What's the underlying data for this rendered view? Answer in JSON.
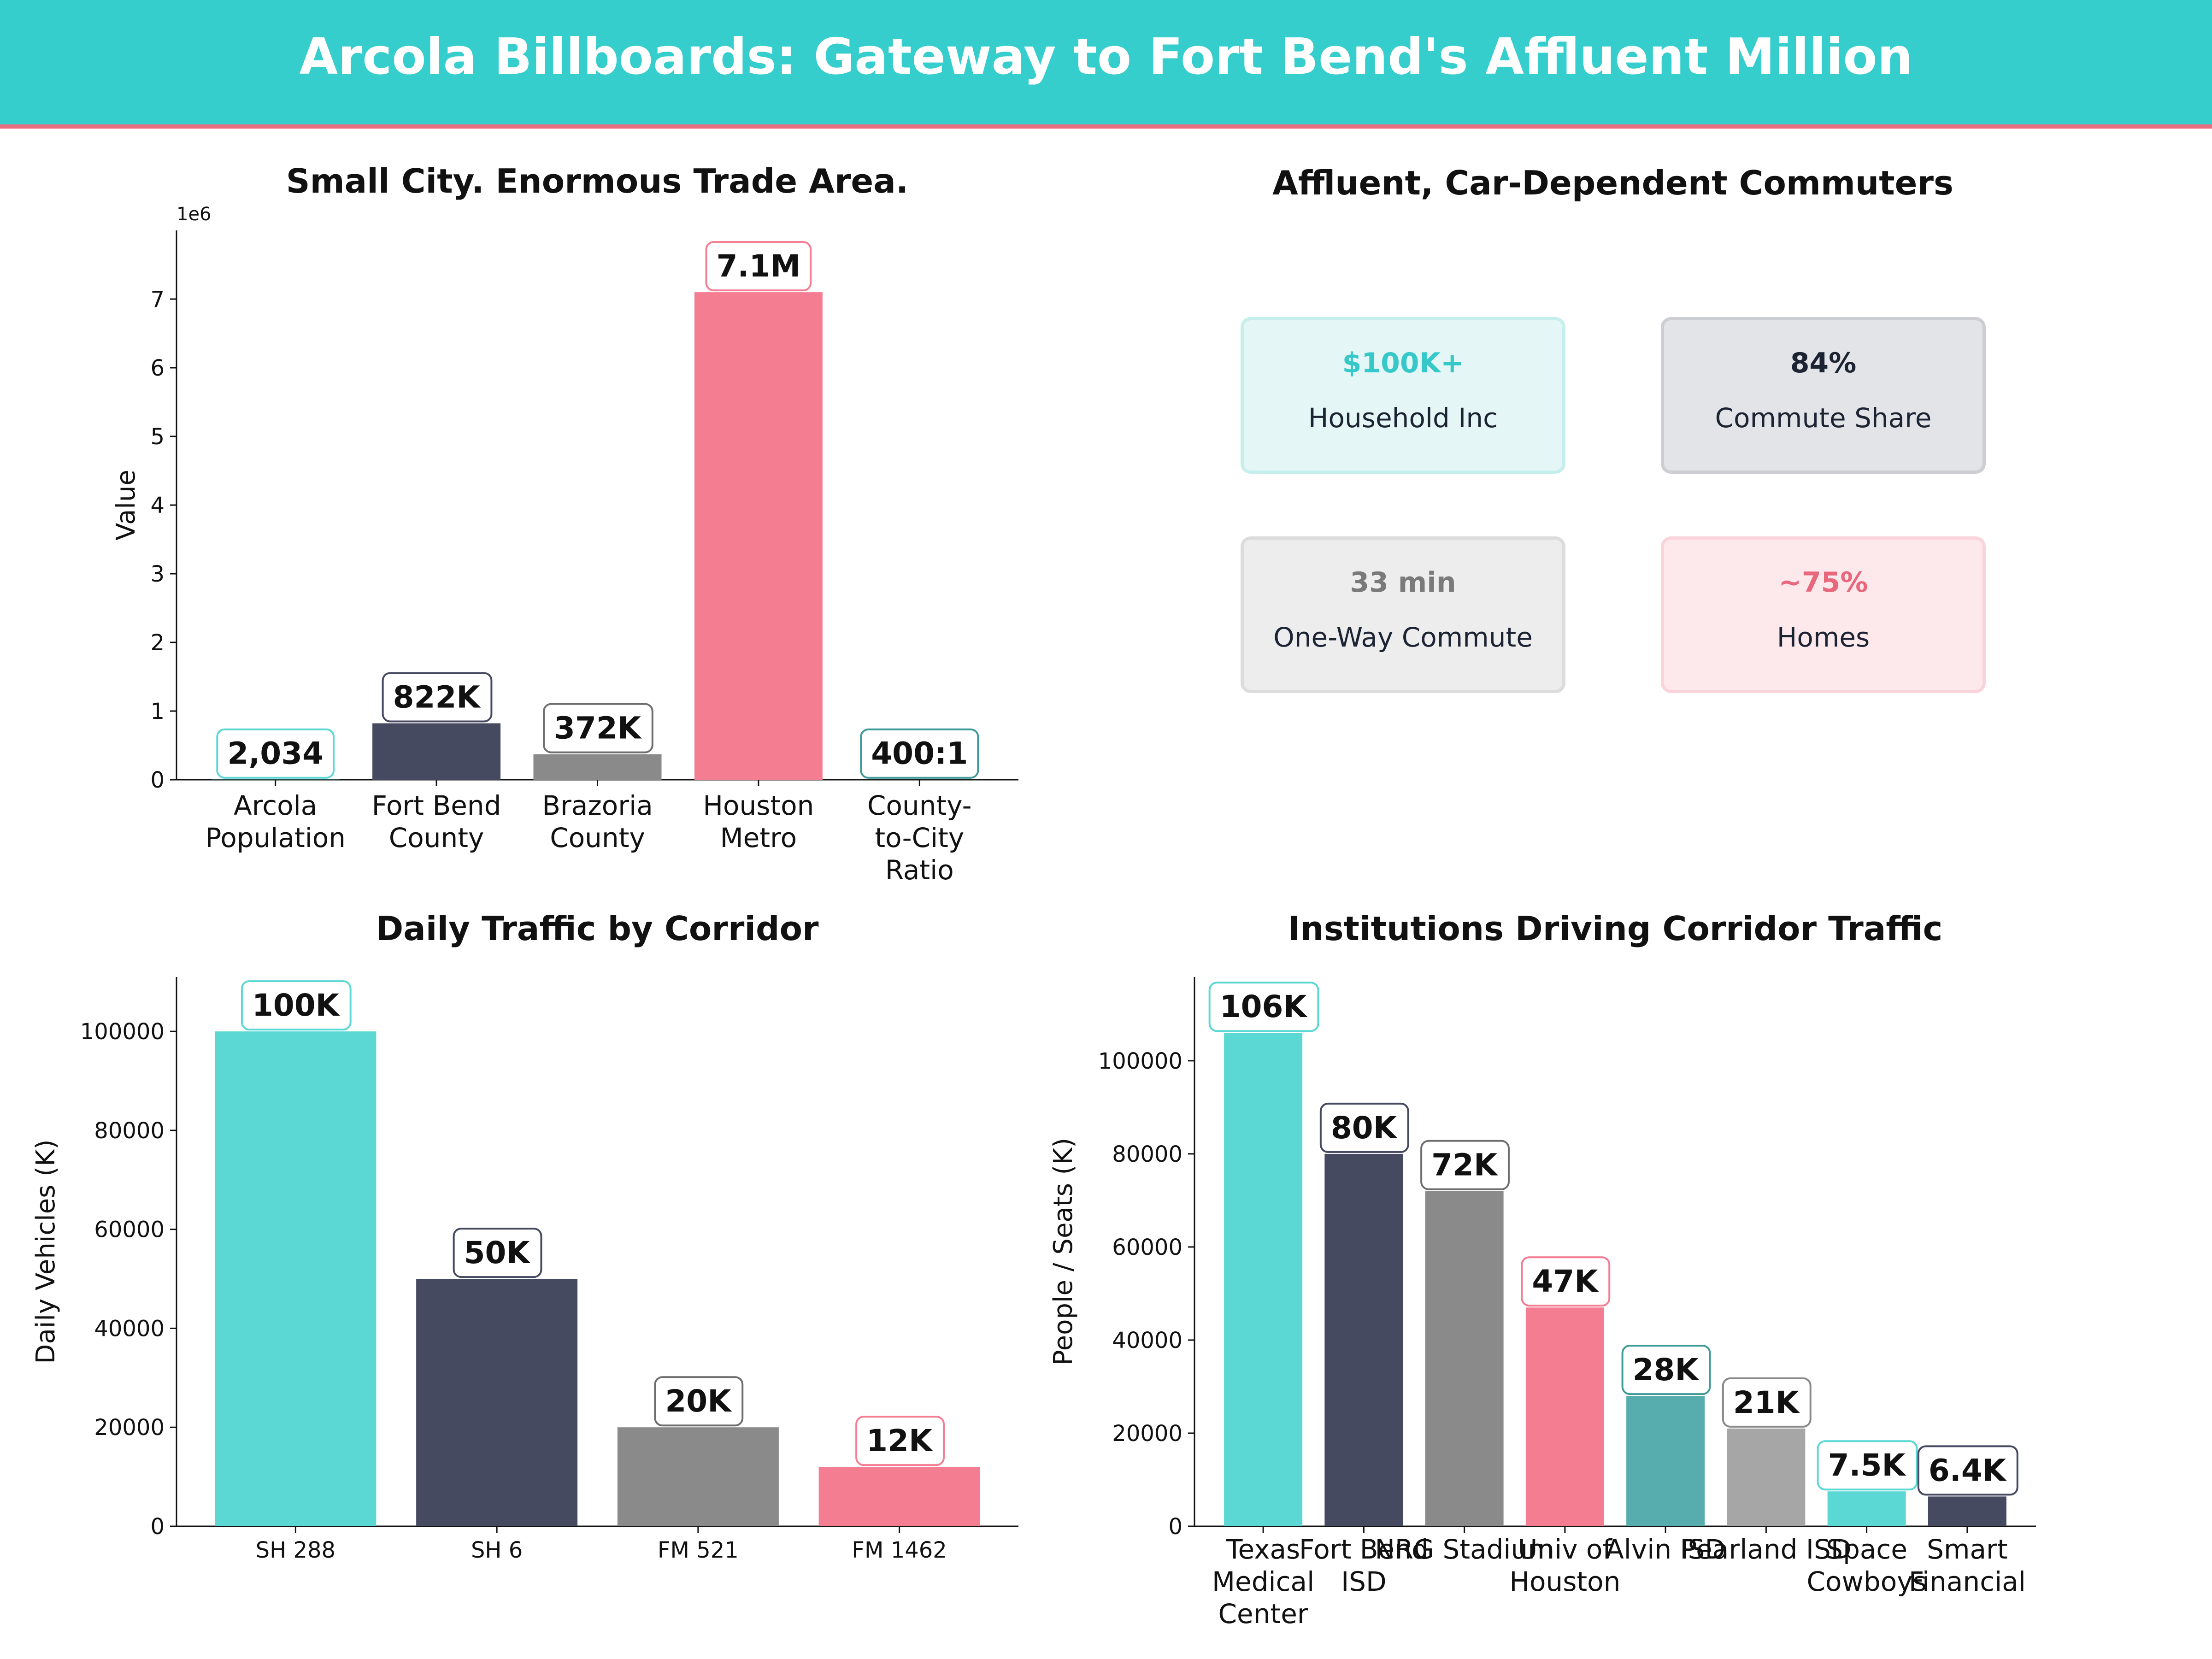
{
  "header": {
    "title": "Arcola Billboards: Gateway to Fort Bend's Affluent Million"
  },
  "colors": {
    "teal": "#5CD8D4",
    "navy": "#464A60",
    "gray": "#8A8A8A",
    "pink": "#F47D92",
    "darkteal": "#57ADAD",
    "lightgray": "#A6A6A6",
    "banner": "#36CDCD",
    "accent": "#E8707E"
  },
  "kpi_panel": {
    "title": "Affluent, Car-Dependent Commuters",
    "cards": [
      {
        "value": "$100K+",
        "label": "Household Inc",
        "color": "#36C8C8",
        "bg": "#E4F7F6",
        "border": "#C6EEEC"
      },
      {
        "value": "84%",
        "label": "Commute Share",
        "color": "#1C2333",
        "bg": "#E3E4E8",
        "border": "#CDCED3"
      },
      {
        "value": "33 min",
        "label": "One-Way Commute",
        "color": "#7A7A7A",
        "bg": "#EDEDED",
        "border": "#DCDCDC"
      },
      {
        "value": "~75%",
        "label": "Homes",
        "color": "#E8677C",
        "bg": "#FDE8EC",
        "border": "#F9D4DB"
      }
    ]
  },
  "chart_data": [
    {
      "type": "bar",
      "title": "Small City. Enormous Trade Area.",
      "ylabel": "Value",
      "offset_text": "1e6",
      "ylim": [
        0,
        8000000
      ],
      "yticks": [
        0,
        1000000,
        2000000,
        3000000,
        4000000,
        5000000,
        6000000,
        7000000
      ],
      "ytick_labels": [
        "0",
        "1",
        "2",
        "3",
        "4",
        "5",
        "6",
        "7"
      ],
      "categories": [
        "Arcola\nPopulation",
        "Fort Bend\nCounty",
        "Brazoria\nCounty",
        "Houston\nMetro",
        "County-\nto-City\nRatio"
      ],
      "values": [
        2034,
        822000,
        372000,
        7100000,
        400
      ],
      "labels": [
        "2,034",
        "822K",
        "372K",
        "7.1M",
        "400:1"
      ],
      "colors": [
        "#5CD8D4",
        "#464A60",
        "#8A8A8A",
        "#F47D92",
        "#57ADAD"
      ],
      "label_borders": [
        "#5CD8D4",
        "#464A60",
        "#6E6E6E",
        "#F47D92",
        "#3F9A9A"
      ],
      "label_values": [
        2034,
        822000,
        372000,
        7100000,
        2034
      ]
    },
    {
      "type": "bar",
      "title": "Daily Traffic by Corridor",
      "ylabel": "Daily Vehicles (K)",
      "ylim": [
        0,
        111000
      ],
      "yticks": [
        0,
        20000,
        40000,
        60000,
        80000,
        100000
      ],
      "ytick_labels": [
        "0",
        "20000",
        "40000",
        "60000",
        "80000",
        "100000"
      ],
      "categories": [
        "SH 288",
        "SH 6",
        "FM 521",
        "FM 1462"
      ],
      "values": [
        100000,
        50000,
        20000,
        12000
      ],
      "labels": [
        "100K",
        "50K",
        "20K",
        "12K"
      ],
      "colors": [
        "#5CD8D4",
        "#464A60",
        "#8A8A8A",
        "#F47D92"
      ],
      "label_borders": [
        "#5CD8D4",
        "#464A60",
        "#6E6E6E",
        "#F47D92"
      ]
    },
    {
      "type": "bar",
      "title": "Institutions Driving Corridor Traffic",
      "ylabel": "People / Seats (K)",
      "ylim": [
        0,
        118000
      ],
      "yticks": [
        0,
        20000,
        40000,
        60000,
        80000,
        100000
      ],
      "ytick_labels": [
        "0",
        "20000",
        "40000",
        "60000",
        "80000",
        "100000"
      ],
      "categories": [
        "Texas\nMedical\nCenter",
        "Fort Bend\nISD",
        "NRG Stadium",
        "Univ of\nHouston",
        "Alvin ISD",
        "Pearland ISD",
        "Space\nCowboys",
        "Smart\nFinancial"
      ],
      "values": [
        106000,
        80000,
        72000,
        47000,
        28000,
        21000,
        7500,
        6400
      ],
      "labels": [
        "106K",
        "80K",
        "72K",
        "47K",
        "28K",
        "21K",
        "7.5K",
        "6.4K"
      ],
      "colors": [
        "#5CD8D4",
        "#464A60",
        "#8A8A8A",
        "#F47D92",
        "#57ADAD",
        "#A6A6A6",
        "#5CD8D4",
        "#464A60"
      ],
      "label_borders": [
        "#5CD8D4",
        "#464A60",
        "#6E6E6E",
        "#F47D92",
        "#3F9A9A",
        "#8A8A8A",
        "#5CD8D4",
        "#464A60"
      ]
    }
  ]
}
